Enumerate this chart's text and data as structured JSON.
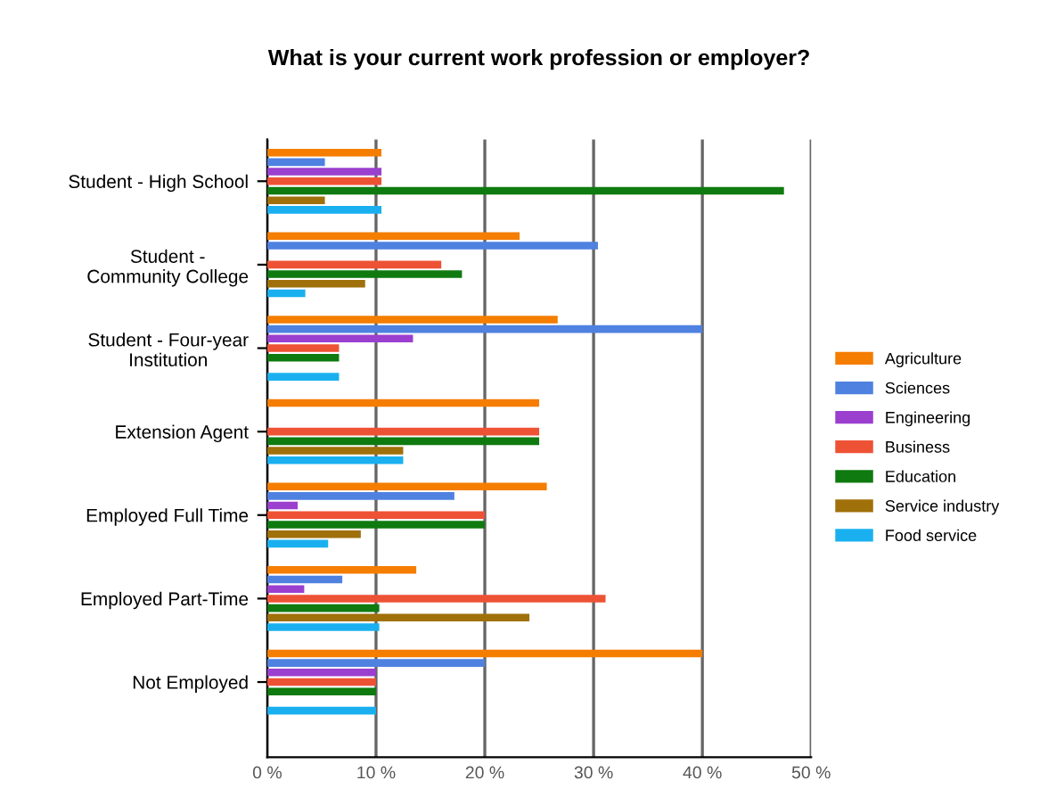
{
  "chart_data": {
    "type": "bar",
    "orientation": "horizontal",
    "title": "What is your current work profession or employer?",
    "categories": [
      "Student - High School",
      "Student -\nCommunity College",
      "Student - Four-year\nInstitution",
      "Extension Agent",
      "Employed Full Time",
      "Employed Part-Time",
      "Not Employed"
    ],
    "series": [
      {
        "name": "Agriculture",
        "color": "#f57d00",
        "values": [
          10.5,
          23.2,
          26.7,
          25,
          25.7,
          13.7,
          40
        ]
      },
      {
        "name": "Sciences",
        "color": "#4f81e0",
        "values": [
          5.3,
          30.4,
          40,
          0,
          17.2,
          6.9,
          20
        ]
      },
      {
        "name": "Engineering",
        "color": "#9b3fcf",
        "values": [
          10.5,
          0,
          13.4,
          0,
          2.8,
          3.4,
          10
        ]
      },
      {
        "name": "Business",
        "color": "#ee5235",
        "values": [
          10.5,
          16,
          6.6,
          25,
          20,
          31.1,
          10
        ]
      },
      {
        "name": "Education",
        "color": "#0f7a0f",
        "values": [
          47.5,
          17.9,
          6.6,
          25,
          20,
          10.3,
          10
        ]
      },
      {
        "name": "Service industry",
        "color": "#a0700a",
        "values": [
          5.3,
          9,
          0,
          12.5,
          8.6,
          24.1,
          0
        ]
      },
      {
        "name": "Food service",
        "color": "#1ab0ef",
        "values": [
          10.5,
          3.5,
          6.6,
          12.5,
          5.6,
          10.3,
          10
        ]
      }
    ],
    "xlim": [
      0,
      50
    ],
    "xticks": [
      {
        "value": 0,
        "label": "0 %"
      },
      {
        "value": 10,
        "label": "10 %"
      },
      {
        "value": 20,
        "label": "20 %"
      },
      {
        "value": 30,
        "label": "30 %"
      },
      {
        "value": 40,
        "label": "40 %"
      },
      {
        "value": 50,
        "label": "50 %"
      }
    ],
    "grid": "x",
    "legend": "right"
  }
}
